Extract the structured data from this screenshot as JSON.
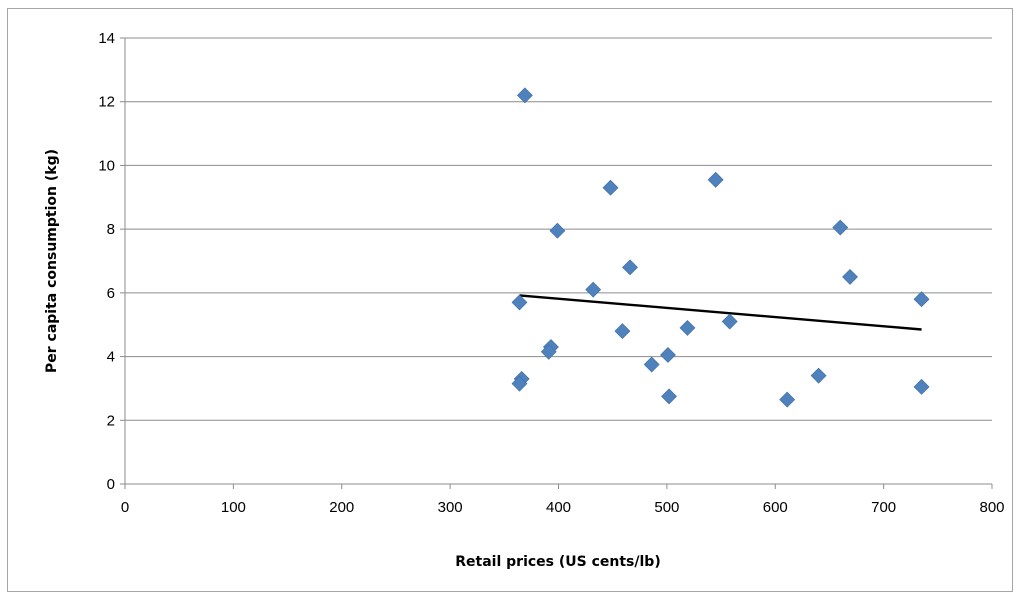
{
  "chart_data": {
    "type": "scatter",
    "title": "",
    "xlabel": "Retail prices (US cents/lb)",
    "ylabel": "Per capita consumption (kg)",
    "xlim": [
      0,
      800
    ],
    "ylim": [
      0,
      14
    ],
    "x_ticks": [
      0,
      100,
      200,
      300,
      400,
      500,
      600,
      700,
      800
    ],
    "y_ticks": [
      0,
      2,
      4,
      6,
      8,
      10,
      12,
      14
    ],
    "grid": "horizontal",
    "legend": "none",
    "marker": "diamond",
    "series_color": "#4f81bd",
    "points": [
      {
        "x": 369,
        "y": 12.2
      },
      {
        "x": 448,
        "y": 9.3
      },
      {
        "x": 545,
        "y": 9.55
      },
      {
        "x": 399,
        "y": 7.95
      },
      {
        "x": 660,
        "y": 8.05
      },
      {
        "x": 466,
        "y": 6.8
      },
      {
        "x": 669,
        "y": 6.5
      },
      {
        "x": 432,
        "y": 6.1
      },
      {
        "x": 364,
        "y": 5.7
      },
      {
        "x": 735,
        "y": 5.8
      },
      {
        "x": 558,
        "y": 5.1
      },
      {
        "x": 519,
        "y": 4.9
      },
      {
        "x": 459,
        "y": 4.8
      },
      {
        "x": 393,
        "y": 4.3
      },
      {
        "x": 391,
        "y": 4.15
      },
      {
        "x": 501,
        "y": 4.05
      },
      {
        "x": 486,
        "y": 3.75
      },
      {
        "x": 640,
        "y": 3.4
      },
      {
        "x": 366,
        "y": 3.3
      },
      {
        "x": 364,
        "y": 3.15
      },
      {
        "x": 735,
        "y": 3.05
      },
      {
        "x": 502,
        "y": 2.75
      },
      {
        "x": 611,
        "y": 2.65
      }
    ],
    "trendline": {
      "type": "linear",
      "x": [
        364,
        735
      ],
      "y": [
        5.92,
        4.85
      ],
      "color": "#000000"
    }
  }
}
